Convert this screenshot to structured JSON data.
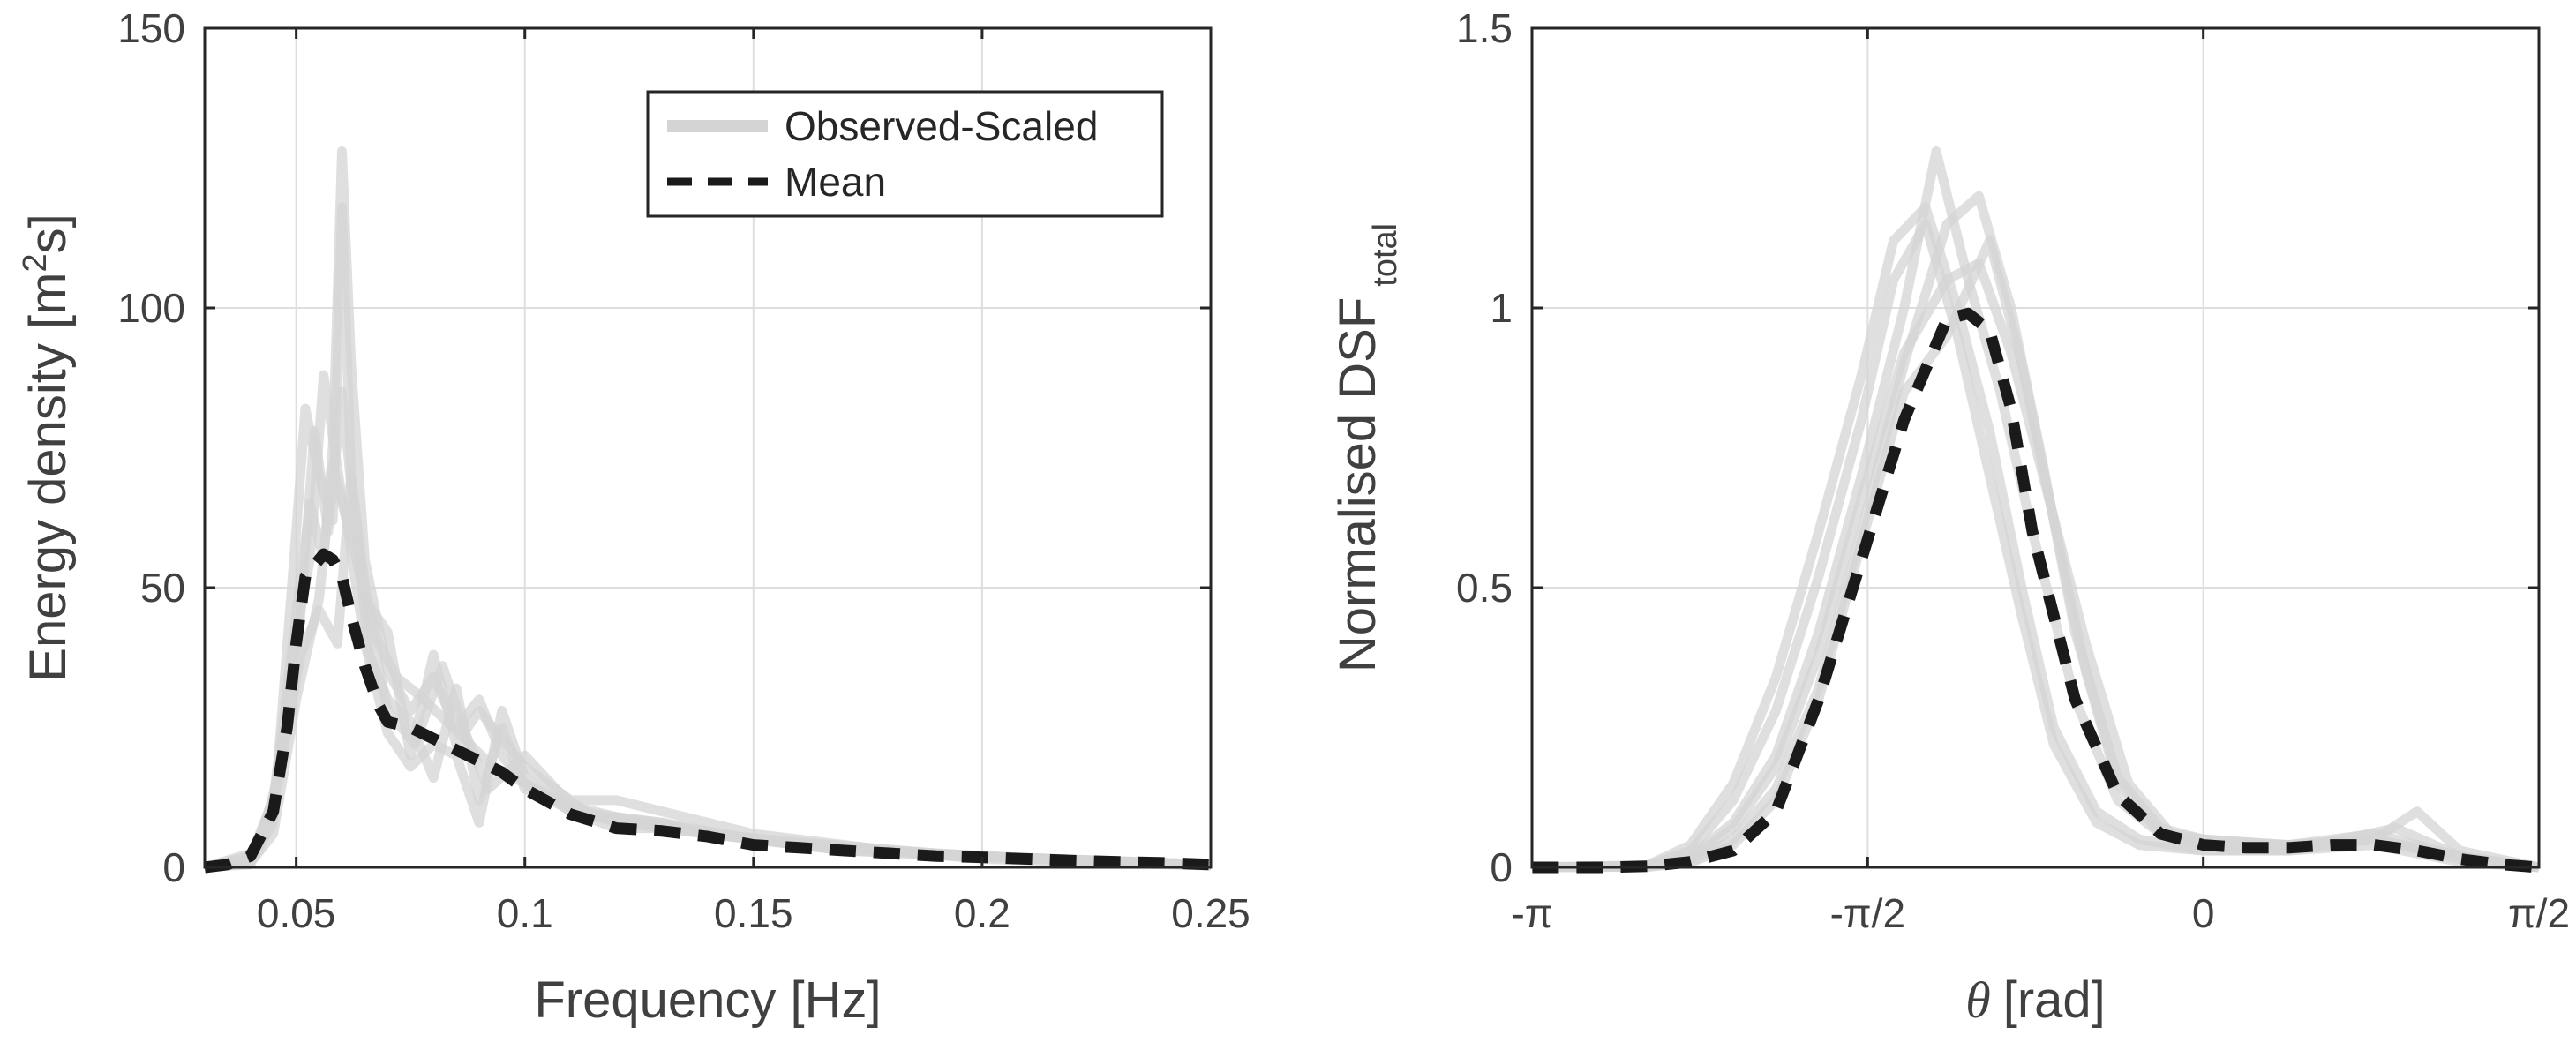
{
  "chart_data": [
    {
      "type": "line",
      "xlabel": "Frequency [Hz]",
      "ylabel_main": "Energy density [m",
      "ylabel_sup": "2",
      "ylabel_tail": "s]",
      "xlim": [
        0.03,
        0.25
      ],
      "ylim": [
        0,
        150
      ],
      "xticks": [
        0.05,
        0.1,
        0.15,
        0.2,
        0.25
      ],
      "xtick_labels": [
        "0.05",
        "0.1",
        "0.15",
        "0.2",
        "0.25"
      ],
      "yticks": [
        0,
        50,
        100,
        150
      ],
      "ytick_labels": [
        "0",
        "50",
        "100",
        "150"
      ],
      "grid": true,
      "legend": {
        "placement": "top-right",
        "entries": [
          {
            "label": "Observed-Scaled",
            "color": "#d4d4d4",
            "style": "solid"
          },
          {
            "label": "Mean",
            "color": "#1a1a1a",
            "style": "dashed"
          }
        ]
      },
      "series": [
        {
          "name": "Mean",
          "color": "#1a1a1a",
          "style": "dashed",
          "x": [
            0.03,
            0.035,
            0.04,
            0.045,
            0.048,
            0.05,
            0.052,
            0.054,
            0.056,
            0.058,
            0.06,
            0.062,
            0.065,
            0.068,
            0.07,
            0.075,
            0.08,
            0.085,
            0.09,
            0.095,
            0.1,
            0.11,
            0.12,
            0.13,
            0.14,
            0.15,
            0.16,
            0.17,
            0.18,
            0.19,
            0.2,
            0.21,
            0.22,
            0.23,
            0.24,
            0.25
          ],
          "y": [
            0,
            0.5,
            2,
            10,
            25,
            40,
            52,
            54,
            56,
            55,
            52,
            45,
            36,
            29,
            26,
            25,
            23,
            21,
            19,
            17,
            14,
            9.5,
            7,
            6.5,
            5.5,
            4,
            3.5,
            3,
            2.5,
            2,
            1.8,
            1.5,
            1.2,
            1,
            0.8,
            0.5
          ]
        },
        {
          "name": "Observed-Scaled",
          "color": "#d4d4d4",
          "style": "solid",
          "x": [
            0.03,
            0.04,
            0.045,
            0.05,
            0.053,
            0.056,
            0.058,
            0.06,
            0.062,
            0.065,
            0.07,
            0.075,
            0.08,
            0.085,
            0.09,
            0.095,
            0.1,
            0.11,
            0.12,
            0.13,
            0.15,
            0.17,
            0.2,
            0.25
          ],
          "y": [
            0,
            2,
            12,
            45,
            65,
            55,
            75,
            128,
            90,
            55,
            35,
            28,
            34,
            25,
            30,
            20,
            15,
            10,
            9,
            8,
            5,
            3,
            2,
            0.5
          ]
        },
        {
          "name": "Observed-Scaled",
          "color": "#d4d4d4",
          "style": "solid",
          "x": [
            0.03,
            0.04,
            0.045,
            0.05,
            0.052,
            0.055,
            0.058,
            0.06,
            0.062,
            0.065,
            0.07,
            0.075,
            0.08,
            0.085,
            0.09,
            0.1,
            0.11,
            0.12,
            0.13,
            0.15,
            0.18,
            0.2,
            0.25
          ],
          "y": [
            0,
            1,
            8,
            60,
            82,
            70,
            62,
            118,
            70,
            48,
            42,
            20,
            38,
            22,
            28,
            18,
            12,
            12,
            10,
            6,
            3,
            2,
            0.3
          ]
        },
        {
          "name": "Observed-Scaled",
          "color": "#d4d4d4",
          "style": "solid",
          "x": [
            0.03,
            0.04,
            0.046,
            0.05,
            0.054,
            0.057,
            0.06,
            0.063,
            0.066,
            0.07,
            0.075,
            0.08,
            0.085,
            0.09,
            0.095,
            0.1,
            0.11,
            0.12,
            0.14,
            0.16,
            0.18,
            0.2,
            0.25
          ],
          "y": [
            0,
            0.5,
            15,
            35,
            78,
            60,
            85,
            60,
            38,
            30,
            26,
            16,
            32,
            12,
            25,
            14,
            11,
            8,
            6,
            4,
            3,
            1.5,
            0.3
          ]
        },
        {
          "name": "Observed-Scaled",
          "color": "#d4d4d4",
          "style": "solid",
          "x": [
            0.03,
            0.04,
            0.045,
            0.05,
            0.055,
            0.058,
            0.061,
            0.065,
            0.07,
            0.075,
            0.08,
            0.085,
            0.09,
            0.095,
            0.1,
            0.105,
            0.11,
            0.12,
            0.13,
            0.15,
            0.17,
            0.2,
            0.25
          ],
          "y": [
            0,
            0.8,
            6,
            30,
            48,
            72,
            62,
            40,
            24,
            18,
            22,
            20,
            8,
            28,
            16,
            13,
            10,
            7,
            7,
            5,
            3,
            1.8,
            0.4
          ]
        },
        {
          "name": "Observed-Scaled",
          "color": "#d4d4d4",
          "style": "solid",
          "x": [
            0.03,
            0.04,
            0.045,
            0.05,
            0.053,
            0.056,
            0.06,
            0.064,
            0.068,
            0.072,
            0.078,
            0.083,
            0.088,
            0.093,
            0.1,
            0.11,
            0.12,
            0.13,
            0.14,
            0.16,
            0.19,
            0.22,
            0.25
          ],
          "y": [
            0,
            1.5,
            10,
            42,
            55,
            88,
            66,
            52,
            40,
            34,
            30,
            26,
            22,
            18,
            15,
            11,
            9,
            8,
            6,
            4.5,
            2.5,
            1.2,
            0.5
          ]
        },
        {
          "name": "Observed-Scaled",
          "color": "#d4d4d4",
          "style": "solid",
          "x": [
            0.03,
            0.042,
            0.047,
            0.051,
            0.055,
            0.059,
            0.062,
            0.066,
            0.07,
            0.076,
            0.082,
            0.087,
            0.092,
            0.1,
            0.108,
            0.115,
            0.125,
            0.135,
            0.15,
            0.17,
            0.2,
            0.25
          ],
          "y": [
            0,
            3,
            20,
            38,
            46,
            40,
            70,
            44,
            28,
            22,
            36,
            24,
            14,
            20,
            13,
            9,
            8,
            7,
            5,
            3.5,
            2,
            0.5
          ]
        }
      ]
    },
    {
      "type": "line",
      "xlabel_symbol": "θ",
      "xlabel": "[rad]",
      "ylabel_main": "Normalised DSF",
      "ylabel_sub": "total",
      "xlim": [
        -3.14159,
        1.5708
      ],
      "ylim": [
        0,
        1.5
      ],
      "xticks": [
        -3.14159,
        -1.5708,
        0,
        1.5708
      ],
      "xtick_labels": [
        "-π",
        "-π/2",
        "0",
        "π/2"
      ],
      "yticks": [
        0,
        0.5,
        1,
        1.5
      ],
      "ytick_labels": [
        "0",
        "0.5",
        "1",
        "1.5"
      ],
      "grid": true,
      "series": [
        {
          "name": "Mean",
          "color": "#1a1a1a",
          "style": "dashed",
          "x": [
            -3.14,
            -2.8,
            -2.6,
            -2.4,
            -2.2,
            -2.0,
            -1.8,
            -1.6,
            -1.4,
            -1.2,
            -1.1,
            -1.0,
            -0.9,
            -0.8,
            -0.6,
            -0.4,
            -0.2,
            0.0,
            0.2,
            0.4,
            0.6,
            0.8,
            1.0,
            1.2,
            1.4,
            1.57
          ],
          "y": [
            0,
            0,
            0.002,
            0.01,
            0.03,
            0.1,
            0.3,
            0.55,
            0.8,
            0.98,
            0.99,
            0.96,
            0.82,
            0.6,
            0.3,
            0.13,
            0.06,
            0.04,
            0.035,
            0.035,
            0.04,
            0.04,
            0.03,
            0.015,
            0.005,
            0
          ]
        },
        {
          "name": "Observed-Scaled",
          "color": "#d4d4d4",
          "style": "solid",
          "x": [
            -3.14,
            -2.6,
            -2.4,
            -2.2,
            -2.0,
            -1.8,
            -1.6,
            -1.4,
            -1.25,
            -1.1,
            -0.95,
            -0.8,
            -0.6,
            -0.4,
            -0.2,
            0.0,
            0.4,
            0.8,
            1.0,
            1.2,
            1.57
          ],
          "y": [
            0,
            0.002,
            0.02,
            0.08,
            0.2,
            0.42,
            0.7,
            1.0,
            1.28,
            1.05,
            0.85,
            0.6,
            0.3,
            0.12,
            0.06,
            0.04,
            0.04,
            0.05,
            0.1,
            0.03,
            0
          ]
        },
        {
          "name": "Observed-Scaled",
          "color": "#d4d4d4",
          "style": "solid",
          "x": [
            -3.14,
            -2.6,
            -2.4,
            -2.2,
            -2.0,
            -1.8,
            -1.6,
            -1.4,
            -1.2,
            -1.05,
            -0.9,
            -0.75,
            -0.6,
            -0.4,
            -0.2,
            0.0,
            0.4,
            0.8,
            1.2,
            1.57
          ],
          "y": [
            0,
            0.001,
            0.01,
            0.05,
            0.14,
            0.32,
            0.6,
            0.9,
            1.15,
            1.2,
            1.0,
            0.72,
            0.42,
            0.16,
            0.07,
            0.05,
            0.04,
            0.06,
            0.02,
            0
          ]
        },
        {
          "name": "Observed-Scaled",
          "color": "#d4d4d4",
          "style": "solid",
          "x": [
            -3.14,
            -2.6,
            -2.4,
            -2.2,
            -2.0,
            -1.8,
            -1.6,
            -1.45,
            -1.3,
            -1.15,
            -1.0,
            -0.85,
            -0.7,
            -0.5,
            -0.3,
            0.0,
            0.4,
            0.8,
            1.2,
            1.57
          ],
          "y": [
            0,
            0.003,
            0.03,
            0.12,
            0.28,
            0.52,
            0.8,
            1.05,
            1.15,
            0.95,
            0.7,
            0.45,
            0.22,
            0.08,
            0.04,
            0.03,
            0.03,
            0.04,
            0.01,
            0
          ]
        },
        {
          "name": "Observed-Scaled",
          "color": "#d4d4d4",
          "style": "solid",
          "x": [
            -3.14,
            -2.6,
            -2.4,
            -2.2,
            -2.0,
            -1.8,
            -1.6,
            -1.4,
            -1.2,
            -1.0,
            -0.85,
            -0.7,
            -0.55,
            -0.4,
            -0.2,
            0.0,
            0.4,
            0.8,
            1.2,
            1.57
          ],
          "y": [
            0,
            0.001,
            0.008,
            0.04,
            0.12,
            0.3,
            0.58,
            0.85,
            0.95,
            1.12,
            0.9,
            0.62,
            0.35,
            0.15,
            0.06,
            0.04,
            0.03,
            0.05,
            0.02,
            0
          ]
        },
        {
          "name": "Observed-Scaled",
          "color": "#d4d4d4",
          "style": "solid",
          "x": [
            -3.14,
            -2.6,
            -2.4,
            -2.2,
            -2.0,
            -1.8,
            -1.6,
            -1.45,
            -1.3,
            -1.15,
            -1.0,
            -0.85,
            -0.7,
            -0.5,
            -0.3,
            0.0,
            0.4,
            0.9,
            1.2,
            1.57
          ],
          "y": [
            0,
            0.004,
            0.04,
            0.15,
            0.34,
            0.6,
            0.88,
            1.12,
            1.18,
            1.0,
            0.78,
            0.5,
            0.25,
            0.1,
            0.05,
            0.03,
            0.03,
            0.07,
            0.02,
            0
          ]
        },
        {
          "name": "Observed-Scaled",
          "color": "#d4d4d4",
          "style": "solid",
          "x": [
            -3.14,
            -2.6,
            -2.4,
            -2.2,
            -2.0,
            -1.8,
            -1.6,
            -1.4,
            -1.2,
            -1.05,
            -0.9,
            -0.75,
            -0.55,
            -0.35,
            -0.15,
            0.0,
            0.4,
            0.8,
            1.2,
            1.57
          ],
          "y": [
            0,
            0.002,
            0.015,
            0.07,
            0.18,
            0.38,
            0.66,
            0.92,
            1.05,
            1.08,
            0.92,
            0.7,
            0.4,
            0.15,
            0.06,
            0.05,
            0.04,
            0.05,
            0.015,
            0
          ]
        }
      ]
    }
  ]
}
